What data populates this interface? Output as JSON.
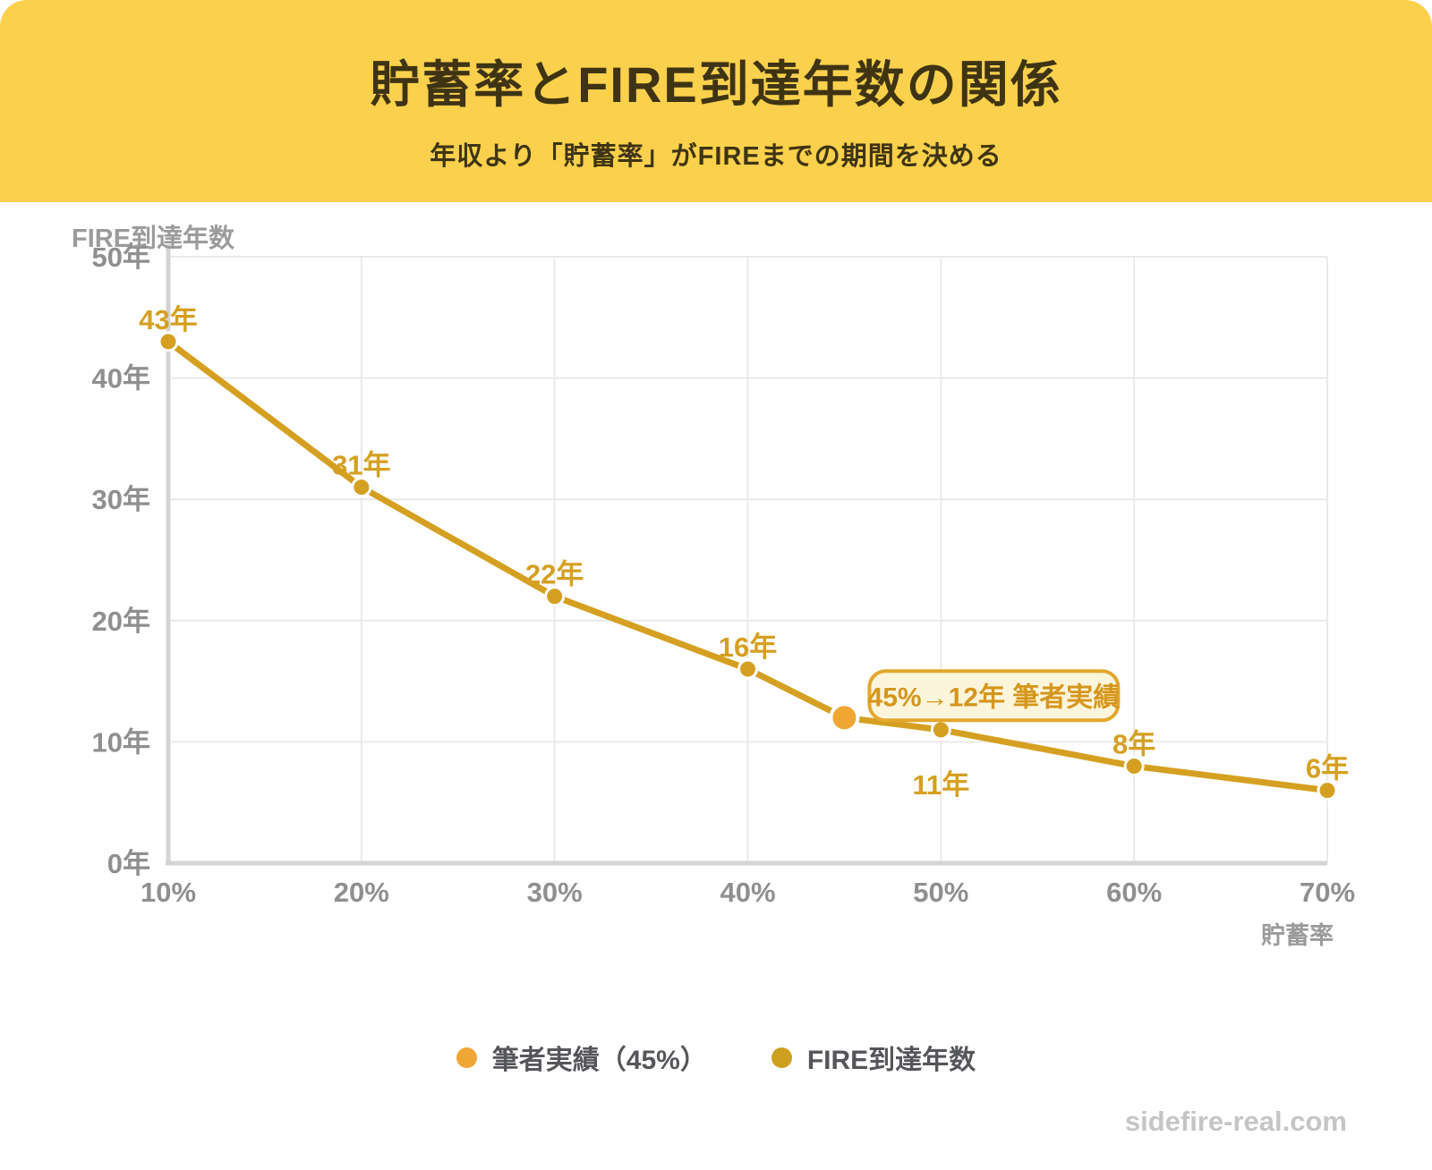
{
  "header": {
    "title": "貯蓄率とFIRE到達年数の関係",
    "subtitle": "年収より「貯蓄率」がFIREまでの期間を決める",
    "bg": "#FBD04C",
    "text_color": "#3E3414"
  },
  "chart_data": {
    "type": "line",
    "title": "貯蓄率とFIRE到達年数の関係",
    "x_label": "貯蓄率",
    "y_label": "FIRE到達年数",
    "x": [
      10,
      20,
      30,
      40,
      45,
      50,
      60,
      70
    ],
    "y": [
      43,
      31,
      22,
      16,
      12,
      11,
      8,
      6
    ],
    "point_labels": [
      "43年",
      "31年",
      "22年",
      "16年",
      null,
      "11年",
      "8年",
      "6年"
    ],
    "label_sides": [
      "above",
      "above",
      "above",
      "above",
      "none",
      "below",
      "above",
      "above"
    ],
    "highlight_index": 4,
    "annotation": {
      "text": "45%→12年 筆者実績"
    },
    "x_ticks": [
      {
        "value": 10,
        "label": "10%"
      },
      {
        "value": 20,
        "label": "20%"
      },
      {
        "value": 30,
        "label": "30%"
      },
      {
        "value": 40,
        "label": "40%"
      },
      {
        "value": 50,
        "label": "50%"
      },
      {
        "value": 60,
        "label": "60%"
      },
      {
        "value": 70,
        "label": "70%"
      }
    ],
    "y_ticks": [
      {
        "value": 0,
        "label": "0年"
      },
      {
        "value": 10,
        "label": "10年"
      },
      {
        "value": 20,
        "label": "20年"
      },
      {
        "value": 30,
        "label": "30年"
      },
      {
        "value": 40,
        "label": "40年"
      },
      {
        "value": 50,
        "label": "50年"
      }
    ],
    "xlim": [
      10,
      70
    ],
    "ylim": [
      0,
      50
    ],
    "grid": true,
    "legend_position": "bottom",
    "colors": {
      "line": "#D5A021",
      "point": "#D5A021",
      "highlight": "#F0A633",
      "point_halo": "#FFFFFF",
      "label": "#D5A021",
      "annotation_bg": "#FDF5DB",
      "annotation_border": "#E2A72E",
      "annotation_text": "#D5961D",
      "grid": "#EAEAEA",
      "axis": "#D4D4D4",
      "tick_text": "#8F8F8F",
      "axis_title": "#9B9B9B"
    }
  },
  "legend": {
    "text_color": "#55565A",
    "items": [
      {
        "label": "筆者実績（45%）",
        "color": "#F0A633"
      },
      {
        "label": "FIRE到達年数",
        "color": "#CDA01F"
      }
    ]
  },
  "footer": {
    "watermark": "sidefire-real.com",
    "color": "#C5C5C5"
  }
}
